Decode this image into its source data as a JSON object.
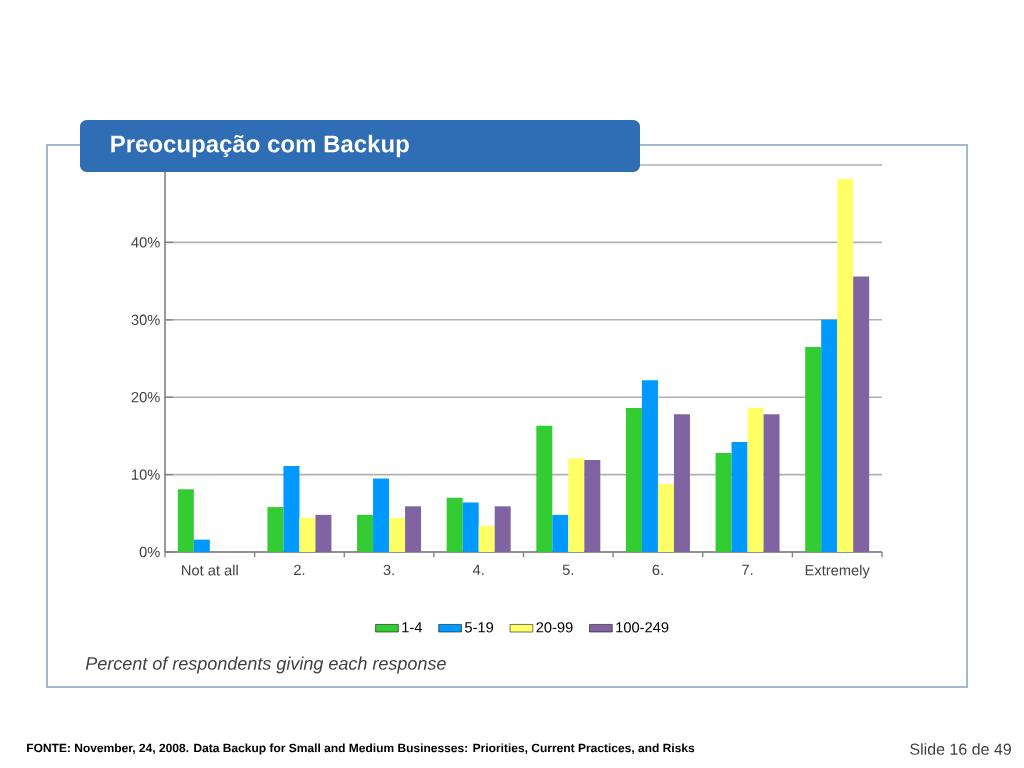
{
  "chart_data": {
    "type": "bar",
    "title": "Preocupação com Backup",
    "categories": [
      "Not at all",
      "2.",
      "3.",
      "4.",
      "5.",
      "6.",
      "7.",
      "Extremely"
    ],
    "series": [
      {
        "name": "1-4",
        "color": "#33cc33",
        "values": [
          8.1,
          5.8,
          4.8,
          7.0,
          16.3,
          18.6,
          12.8,
          26.5
        ]
      },
      {
        "name": "5-19",
        "color": "#0099ff",
        "values": [
          1.6,
          11.1,
          9.5,
          6.4,
          4.8,
          22.2,
          14.2,
          30.0
        ]
      },
      {
        "name": "20-99",
        "color": "#ffff66",
        "values": [
          null,
          4.4,
          4.4,
          3.4,
          12.1,
          8.8,
          18.6,
          48.2
        ]
      },
      {
        "name": "100-249",
        "color": "#8064a2",
        "values": [
          null,
          4.8,
          5.9,
          5.9,
          11.9,
          17.8,
          17.8,
          35.6
        ]
      }
    ],
    "ylim": [
      0,
      50
    ],
    "yticks": [
      {
        "value": 0,
        "label": "0%"
      },
      {
        "value": 10,
        "label": "10%"
      },
      {
        "value": 20,
        "label": "20%"
      },
      {
        "value": 30,
        "label": "30%"
      },
      {
        "value": 40,
        "label": "40%"
      },
      {
        "value": 50,
        "label": null
      }
    ],
    "grid": "y",
    "legend": "bottom",
    "annotations": [
      "Percent of respondents giving each response",
      "FONTE: November, 24, 2008. Data Backup for Small and Medium Businesses: Priorities, Current Practices, and Risks",
      "Slide 16 de 49"
    ]
  }
}
